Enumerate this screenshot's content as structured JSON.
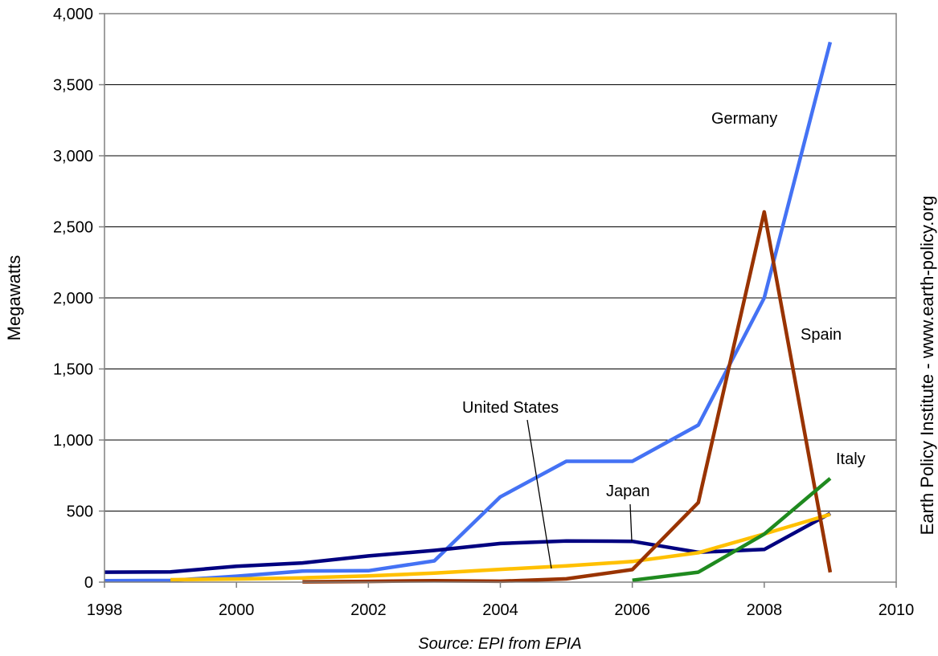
{
  "chart_data": {
    "type": "line",
    "ylabel": "Megawatts",
    "xlim": [
      1998,
      2010
    ],
    "ylim": [
      0,
      4000
    ],
    "x_ticks": [
      1998,
      2000,
      2002,
      2004,
      2006,
      2008,
      2010
    ],
    "x_tick_labels": [
      "1998",
      "2000",
      "2002",
      "2004",
      "2006",
      "2008",
      "2010"
    ],
    "y_ticks": [
      0,
      500,
      1000,
      1500,
      2000,
      2500,
      3000,
      3500,
      4000
    ],
    "y_tick_labels": [
      "0",
      "500",
      "1,000",
      "1,500",
      "2,000",
      "2,500",
      "3,000",
      "3,500",
      "4,000"
    ],
    "grid": "horizontal",
    "legend": "none",
    "series": [
      {
        "name": "Germany",
        "color": "#4472F4",
        "points": [
          [
            1998,
            10
          ],
          [
            1999,
            12
          ],
          [
            2000,
            42
          ],
          [
            2001,
            78
          ],
          [
            2002,
            80
          ],
          [
            2003,
            150
          ],
          [
            2004,
            600
          ],
          [
            2005,
            850
          ],
          [
            2006,
            850
          ],
          [
            2007,
            1105
          ],
          [
            2008,
            2000
          ],
          [
            2009,
            3800
          ]
        ]
      },
      {
        "name": "Spain",
        "color": "#993300",
        "points": [
          [
            2001,
            2
          ],
          [
            2002,
            5
          ],
          [
            2003,
            10
          ],
          [
            2004,
            6
          ],
          [
            2005,
            23
          ],
          [
            2006,
            88
          ],
          [
            2007,
            560
          ],
          [
            2008,
            2605
          ],
          [
            2009,
            69
          ]
        ]
      },
      {
        "name": "Italy",
        "color": "#1F8A1F",
        "points": [
          [
            2006,
            13
          ],
          [
            2007,
            70
          ],
          [
            2008,
            338
          ],
          [
            2009,
            730
          ]
        ]
      },
      {
        "name": "Japan",
        "color": "#000080",
        "points": [
          [
            1998,
            70
          ],
          [
            1999,
            72
          ],
          [
            2000,
            112
          ],
          [
            2001,
            135
          ],
          [
            2002,
            184
          ],
          [
            2003,
            223
          ],
          [
            2004,
            272
          ],
          [
            2005,
            290
          ],
          [
            2006,
            287
          ],
          [
            2007,
            210
          ],
          [
            2008,
            230
          ],
          [
            2009,
            484
          ]
        ]
      },
      {
        "name": "United States",
        "color": "#FFC000",
        "points": [
          [
            1999,
            17
          ],
          [
            2000,
            22
          ],
          [
            2001,
            30
          ],
          [
            2002,
            44
          ],
          [
            2003,
            63
          ],
          [
            2004,
            90
          ],
          [
            2005,
            114
          ],
          [
            2006,
            145
          ],
          [
            2007,
            207
          ],
          [
            2008,
            339
          ],
          [
            2009,
            477
          ]
        ]
      }
    ]
  },
  "labels": {
    "germany": "Germany",
    "spain": "Spain",
    "italy": "Italy",
    "japan": "Japan",
    "united_states": "United States"
  },
  "source": "Source: EPI from EPIA",
  "credit": "Earth Policy Institute - www.earth-policy.org"
}
